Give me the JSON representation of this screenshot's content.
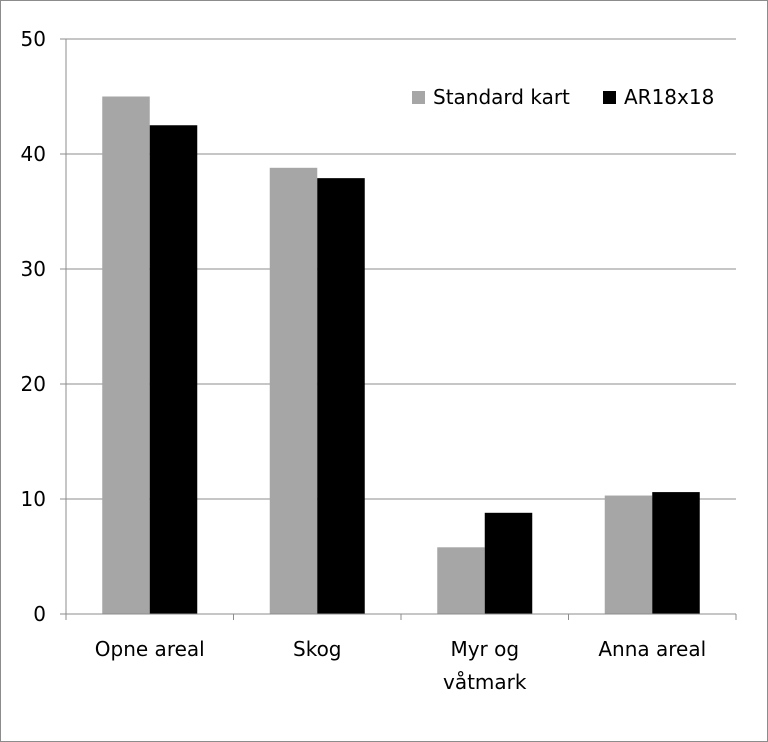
{
  "chart_data": {
    "type": "bar",
    "categories": [
      [
        "Opne areal"
      ],
      [
        "Skog"
      ],
      [
        "Myr og",
        "våtmark"
      ],
      [
        "Anna areal"
      ]
    ],
    "series": [
      {
        "name": "Standard kart",
        "color": "#a6a6a6",
        "values": [
          45.0,
          38.8,
          5.8,
          10.3
        ]
      },
      {
        "name": "AR18x18",
        "color": "#000000",
        "values": [
          42.5,
          37.9,
          8.8,
          10.6
        ]
      }
    ],
    "ylim": [
      0,
      50
    ],
    "yticks": [
      0,
      10,
      20,
      30,
      40,
      50
    ],
    "grid": true,
    "legend_position": "top-right",
    "title": "",
    "xlabel": "",
    "ylabel": ""
  }
}
